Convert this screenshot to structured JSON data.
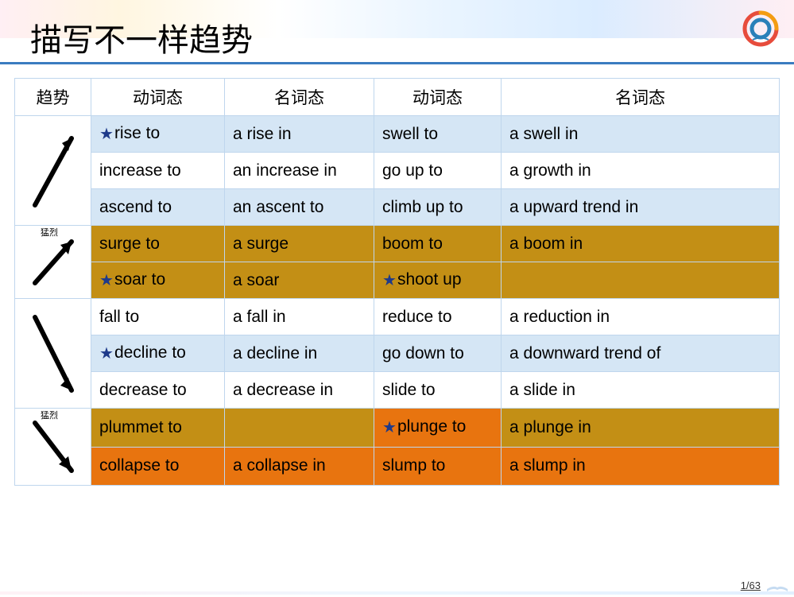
{
  "title": "描写不一样趋势",
  "page_indicator": "1/63",
  "headers": {
    "trend": "趋势",
    "verb1": "动词态",
    "noun1": "名词态",
    "verb2": "动词态",
    "noun2": "名词态"
  },
  "labels": {
    "fierce": "猛烈"
  },
  "colors": {
    "header_underline": "#3a7cc0",
    "row_light": "#d5e6f5",
    "row_white": "#ffffff",
    "row_gold": "#c38f15",
    "row_orange": "#e8740f",
    "star": "#1e3a8a",
    "border": "#bfd6ed"
  },
  "sections": [
    {
      "arrow": "up-gentle",
      "rows": [
        {
          "bg": "light",
          "v1_star": true,
          "v1": "rise to",
          "n1": "a rise in",
          "v2_star": false,
          "v2": "swell to",
          "n2": "a swell in"
        },
        {
          "bg": "white",
          "v1_star": false,
          "v1": "increase to",
          "n1": "an increase in",
          "v2_star": false,
          "v2": "go up to",
          "n2": "a growth in"
        },
        {
          "bg": "light",
          "v1_star": false,
          "v1": "ascend to",
          "n1": "an ascent to",
          "v2_star": false,
          "v2": "climb up to",
          "n2": "a upward trend in"
        }
      ]
    },
    {
      "arrow": "up-steep",
      "label_key": "fierce",
      "rows": [
        {
          "bg": "gold",
          "v1_star": false,
          "v1": "surge to",
          "n1": "a surge",
          "v2_star": false,
          "v2": "boom to",
          "n2": "a boom in"
        },
        {
          "bg": "gold",
          "v1_star": true,
          "v1": "soar to",
          "n1": "a soar",
          "v2_star": true,
          "v2": "shoot up",
          "n2": ""
        }
      ]
    },
    {
      "arrow": "down-gentle",
      "rows": [
        {
          "bg": "white",
          "v1_star": false,
          "v1": "fall to",
          "n1": "a fall in",
          "v2_star": false,
          "v2": "reduce to",
          "n2": "a reduction in"
        },
        {
          "bg": "light",
          "v1_star": true,
          "v1": "decline to",
          "n1": "a decline in",
          "v2_star": false,
          "v2": "go down to",
          "n2": "a downward trend of"
        },
        {
          "bg": "white",
          "v1_star": false,
          "v1": "decrease to",
          "n1": "a decrease in",
          "v2_star": false,
          "v2": "slide to",
          "n2": "a slide in"
        }
      ]
    },
    {
      "arrow": "down-steep",
      "label_key": "fierce",
      "rows": [
        {
          "bg": "gold",
          "v1_star": false,
          "v1": "plummet to",
          "n1": "",
          "v2_star": true,
          "v2_bg": "orange",
          "v2": "plunge to",
          "n2": "a plunge in"
        },
        {
          "bg": "orange",
          "v1_star": false,
          "v1": "collapse to",
          "n1": "a collapse in",
          "v2_star": false,
          "v2": "slump to",
          "n2": "a slump in"
        }
      ]
    }
  ]
}
